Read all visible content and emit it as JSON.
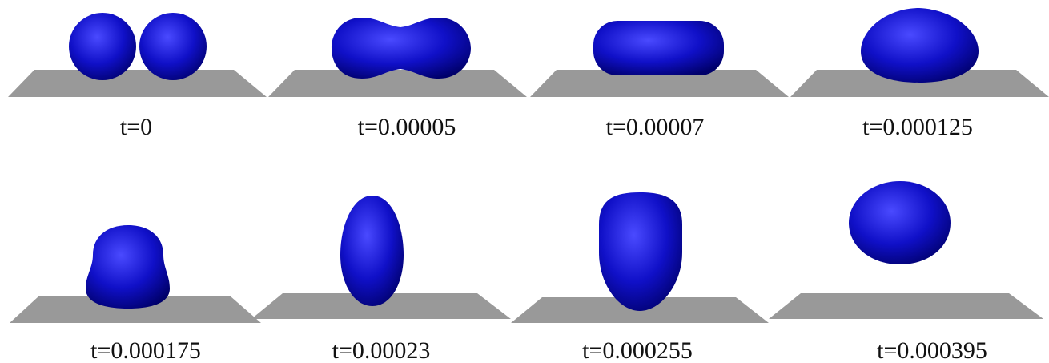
{
  "colors": {
    "droplet": "#1010c8",
    "droplet_shadow": "#00006a",
    "droplet_highlight": "#4a4aff",
    "substrate": "#999999",
    "background": "#ffffff",
    "label_text": "#111111"
  },
  "frames": [
    {
      "time_label": "t=0"
    },
    {
      "time_label": "t=0.00005"
    },
    {
      "time_label": "t=0.00007"
    },
    {
      "time_label": "t=0.000125"
    },
    {
      "time_label": "t=0.000175"
    },
    {
      "time_label": "t=0.00023"
    },
    {
      "time_label": "t=0.000255"
    },
    {
      "time_label": "t=0.000395"
    }
  ]
}
